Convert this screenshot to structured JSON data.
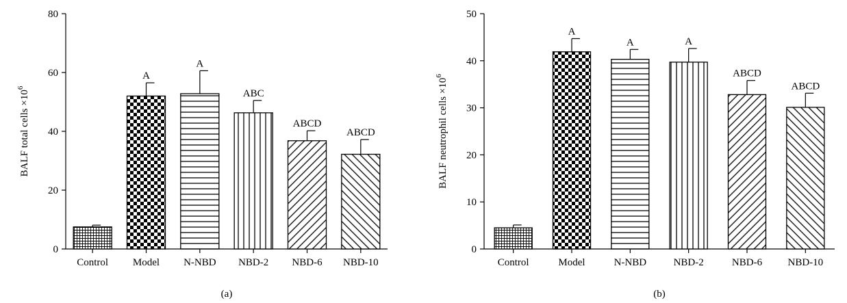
{
  "chart_data": [
    {
      "type": "bar",
      "panel_label": "(a)",
      "ylabel": "BALF total cells ×10",
      "ylabel_exponent": "6",
      "categories": [
        "Control",
        "Model",
        "N-NBD",
        "NBD-2",
        "NBD-6",
        "NBD-10"
      ],
      "values": [
        7.5,
        52,
        52.8,
        46.3,
        36.8,
        32.2
      ],
      "errors": [
        0.6,
        4.5,
        7.8,
        4.2,
        3.4,
        5.0
      ],
      "significance": [
        "",
        "A",
        "A",
        "ABC",
        "ABCD",
        "ABCD"
      ],
      "patterns": [
        "grid",
        "checker",
        "hlines",
        "vlines",
        "diag-up",
        "diag-down"
      ],
      "ylim": [
        0,
        80
      ],
      "yticks": [
        0,
        20,
        40,
        60,
        80
      ],
      "grid": false,
      "legend": "none"
    },
    {
      "type": "bar",
      "panel_label": "(b)",
      "ylabel": "BALF neutrophil cells ×10",
      "ylabel_exponent": "6",
      "categories": [
        "Control",
        "Model",
        "N-NBD",
        "NBD-2",
        "NBD-6",
        "NBD-10"
      ],
      "values": [
        4.5,
        41.9,
        40.3,
        39.7,
        32.8,
        30.1
      ],
      "errors": [
        0.6,
        2.8,
        2.1,
        2.9,
        3.0,
        3.0
      ],
      "significance": [
        "",
        "A",
        "A",
        "A",
        "ABCD",
        "ABCD"
      ],
      "patterns": [
        "grid",
        "checker",
        "hlines",
        "vlines",
        "diag-up",
        "diag-down"
      ],
      "ylim": [
        0,
        50
      ],
      "yticks": [
        0,
        10,
        20,
        30,
        40,
        50
      ],
      "grid": false,
      "legend": "none"
    }
  ]
}
